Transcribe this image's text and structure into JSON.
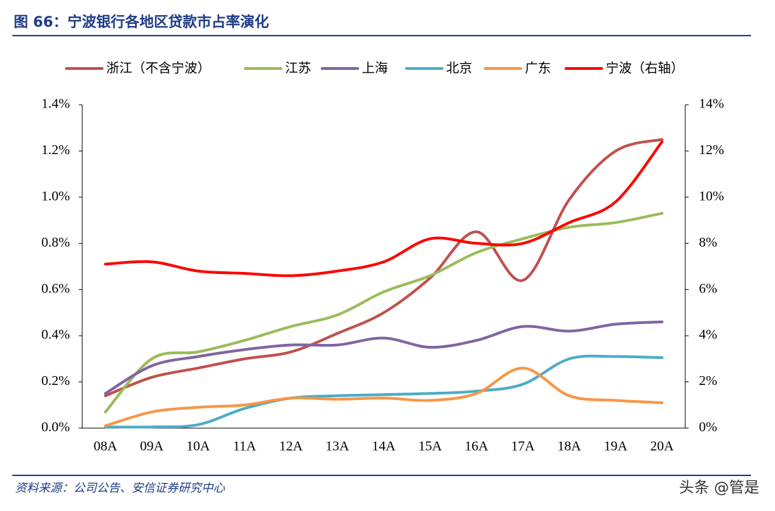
{
  "title": "图 66：宁波银行各地区贷款市占率演化",
  "source": "资料来源：公司公告、安信证券研究中心",
  "watermark": "头条 @管是",
  "chart_data": {
    "type": "line",
    "categories": [
      "08A",
      "09A",
      "10A",
      "11A",
      "12A",
      "13A",
      "14A",
      "15A",
      "16A",
      "17A",
      "18A",
      "19A",
      "20A"
    ],
    "series": [
      {
        "name": "浙江（不含宁波）",
        "color": "#c0504d",
        "values": [
          0.14,
          0.22,
          0.26,
          0.3,
          0.33,
          0.41,
          0.5,
          0.65,
          0.85,
          0.64,
          0.99,
          1.2,
          1.25
        ]
      },
      {
        "name": "江苏",
        "color": "#9bbb59",
        "values": [
          0.07,
          0.3,
          0.33,
          0.38,
          0.44,
          0.49,
          0.59,
          0.66,
          0.76,
          0.82,
          0.87,
          0.89,
          0.93
        ]
      },
      {
        "name": "上海",
        "color": "#8064a2",
        "values": [
          0.15,
          0.27,
          0.31,
          0.34,
          0.36,
          0.36,
          0.39,
          0.35,
          0.38,
          0.44,
          0.42,
          0.45,
          0.46
        ]
      },
      {
        "name": "北京",
        "color": "#4bacc6",
        "values": [
          0.005,
          0.005,
          0.015,
          0.085,
          0.13,
          0.14,
          0.145,
          0.15,
          0.16,
          0.19,
          0.3,
          0.31,
          0.305
        ]
      },
      {
        "name": "广东",
        "color": "#f79646",
        "values": [
          0.01,
          0.07,
          0.09,
          0.1,
          0.13,
          0.125,
          0.13,
          0.12,
          0.15,
          0.26,
          0.14,
          0.12,
          0.11
        ]
      },
      {
        "name": "宁波（右轴）",
        "color": "#ff0000",
        "axis": "y2",
        "values": [
          7.1,
          7.2,
          6.8,
          6.7,
          6.6,
          6.8,
          7.2,
          8.2,
          8.0,
          8.0,
          8.9,
          9.8,
          12.4
        ]
      }
    ],
    "ylim": [
      0,
      1.4
    ],
    "yticks": [
      {
        "value": 0,
        "label": "0.0%"
      },
      {
        "value": 0.2,
        "label": "0.2%"
      },
      {
        "value": 0.4,
        "label": "0.4%"
      },
      {
        "value": 0.6,
        "label": "0.6%"
      },
      {
        "value": 0.8,
        "label": "0.8%"
      },
      {
        "value": 1.0,
        "label": "1.0%"
      },
      {
        "value": 1.2,
        "label": "1.2%"
      },
      {
        "value": 1.4,
        "label": "1.4%"
      }
    ],
    "y2lim": [
      0,
      14
    ],
    "y2ticks": [
      {
        "value": 0,
        "label": "0%"
      },
      {
        "value": 2,
        "label": "2%"
      },
      {
        "value": 4,
        "label": "4%"
      },
      {
        "value": 6,
        "label": "6%"
      },
      {
        "value": 8,
        "label": "8%"
      },
      {
        "value": 10,
        "label": "10%"
      },
      {
        "value": 12,
        "label": "12%"
      },
      {
        "value": 14,
        "label": "14%"
      }
    ],
    "grid": false,
    "legend": "top"
  }
}
